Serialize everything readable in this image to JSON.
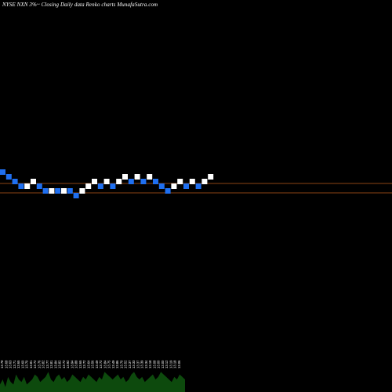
{
  "title": "NYSE NXN  3%~  Closing Daily data  Renko  charts MunafaSutra.com",
  "colors": {
    "background": "#000000",
    "up_brick": "#ffffff",
    "down_brick": "#1f6ff0",
    "reference_line": "#8b4513",
    "volume": "#0d4a0d",
    "text": "#ffffff"
  },
  "chart_data": {
    "type": "renko",
    "title": "NYSE NXN  3%~  Closing Daily data  Renko  charts MunafaSutra.com",
    "brick_direction": [
      "down",
      "down",
      "down",
      "down",
      "up",
      "up",
      "down",
      "down",
      "up",
      "down",
      "up",
      "down",
      "down",
      "up",
      "up",
      "up",
      "down",
      "up",
      "down",
      "up",
      "up",
      "down",
      "up",
      "down",
      "up",
      "down",
      "down",
      "down",
      "up",
      "up",
      "down",
      "up",
      "down",
      "up",
      "up"
    ],
    "brick_level": [
      0,
      -1,
      -2,
      -3,
      -3,
      -2,
      -3,
      -4,
      -4,
      -4,
      -4,
      -4,
      -5,
      -4,
      -3,
      -2,
      -3,
      -2,
      -3,
      -2,
      -1,
      -2,
      -1,
      -2,
      -1,
      -2,
      -3,
      -4,
      -3,
      -2,
      -3,
      -2,
      -3,
      -2,
      -1
    ],
    "price_labels": [
      "13.78",
      "13.68",
      "13.63",
      "13.71",
      "13.65",
      "13.60",
      "13.70",
      "13.81",
      "13.72",
      "13.76",
      "13.82",
      "13.77",
      "13.81",
      "13.84",
      "13.82",
      "13.72",
      "13.92",
      "13.94",
      "13.88",
      "13.65",
      "13.72",
      "13.64",
      "13.56",
      "13.49",
      "13.72",
      "13.84",
      "13.75",
      "13.49",
      "13.86",
      "13.70",
      "13.52",
      "13.37",
      "13.33",
      "13.37",
      "13.39",
      "13.34",
      "13.18",
      "13.08",
      "13.00",
      "13.00",
      "13.12",
      "13.19",
      "13.18",
      "13.06"
    ],
    "volume_profile": [
      3,
      5,
      2,
      6,
      4,
      3,
      7,
      5,
      4,
      6,
      3,
      4,
      5,
      7,
      6,
      4,
      5,
      6,
      8,
      5,
      4,
      6,
      7,
      5,
      6,
      4,
      5,
      7,
      6,
      5,
      4,
      6,
      5,
      7,
      6,
      5,
      4,
      6,
      5,
      8,
      7,
      6,
      5,
      6,
      7,
      5,
      6,
      4,
      5,
      7,
      8,
      6,
      5,
      6,
      4,
      5,
      6,
      7,
      5,
      6,
      8,
      7,
      6,
      5,
      4,
      6,
      5,
      7,
      6,
      5
    ],
    "reference_lines": [
      {
        "name": "upper"
      },
      {
        "name": "lower"
      }
    ]
  }
}
